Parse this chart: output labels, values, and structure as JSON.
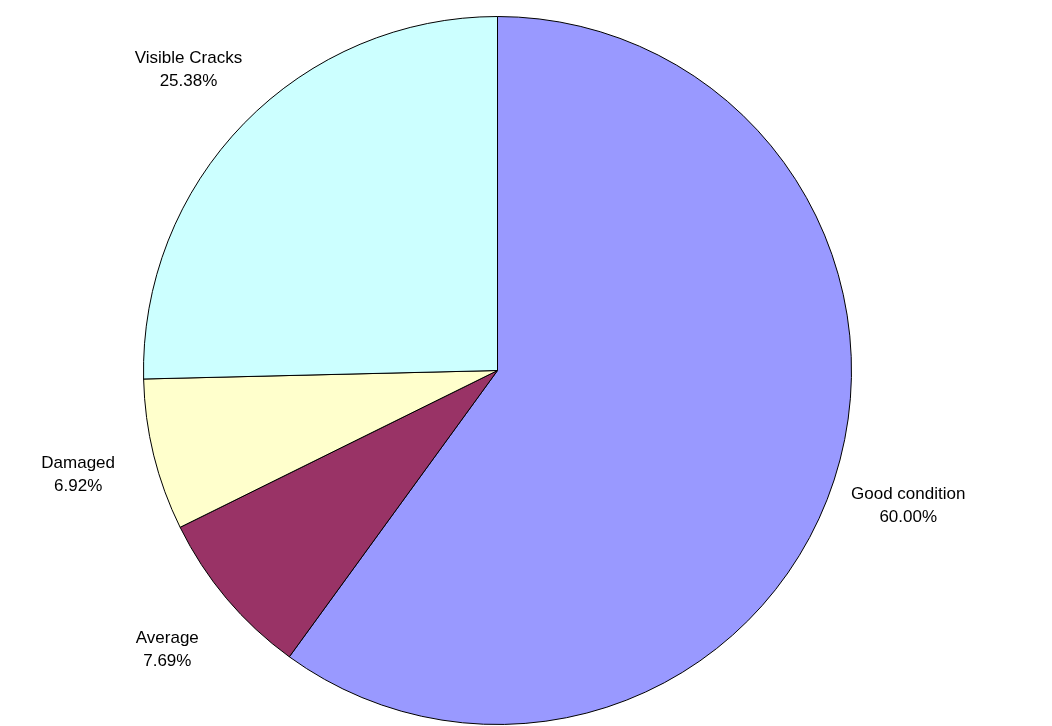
{
  "chart_data": {
    "type": "pie",
    "categories": [
      "Good condition",
      "Average",
      "Damaged",
      "Visible Cracks"
    ],
    "values": [
      60.0,
      7.69,
      6.92,
      25.38
    ],
    "value_labels": [
      "60.00%",
      "7.69%",
      "6.92%",
      "25.38%"
    ],
    "colors": [
      "#9999ff",
      "#993366",
      "#ffffcc",
      "#ccffff"
    ]
  }
}
